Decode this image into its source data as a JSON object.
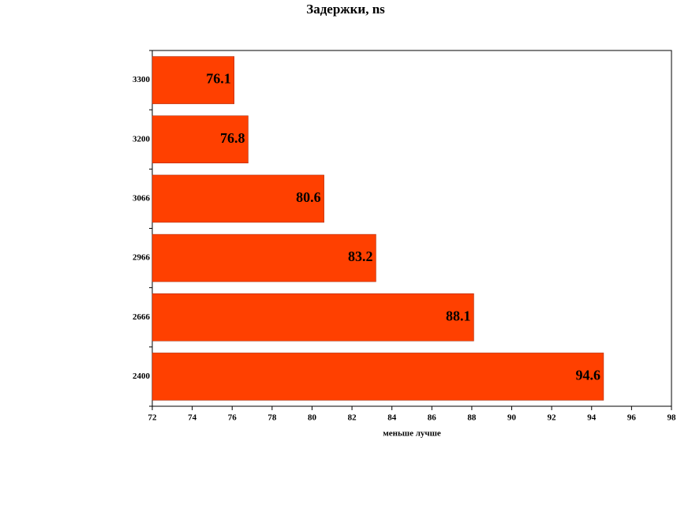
{
  "chart_data": {
    "type": "barh",
    "title": "Задержки, ns",
    "x_label": "меньше лучше",
    "categories": [
      "3300",
      "3200",
      "3066",
      "2966",
      "2666",
      "2400"
    ],
    "values": [
      76.1,
      76.8,
      80.6,
      83.2,
      88.1,
      94.6
    ],
    "color": "#ff4000",
    "xlim": [
      72,
      98
    ],
    "xticks": [
      72,
      74,
      76,
      78,
      80,
      82,
      84,
      86,
      88,
      90,
      92,
      94,
      96,
      98
    ]
  }
}
